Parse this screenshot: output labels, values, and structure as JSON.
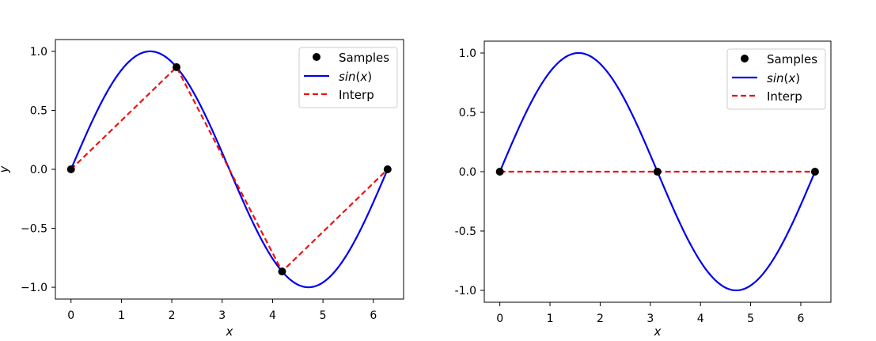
{
  "colors": {
    "samples": "#000000",
    "sin": "#0000ee",
    "interp": "#ee1111",
    "legend_border": "#cccccc"
  },
  "chart_data": [
    {
      "type": "line",
      "title": "",
      "xlabel": "x",
      "ylabel": "y",
      "xlim": [
        -0.31,
        6.6
      ],
      "ylim": [
        -1.1,
        1.1
      ],
      "xticks": [
        0,
        1,
        2,
        3,
        4,
        5,
        6
      ],
      "xtick_labels": [
        "0",
        "1",
        "2",
        "3",
        "4",
        "5",
        "6"
      ],
      "yticks": [
        1.0,
        0.5,
        0.0,
        -0.5,
        -1.0
      ],
      "ytick_labels": [
        "1.0",
        "0.5",
        "0.0",
        "−0.5",
        "−1.0"
      ],
      "legend": {
        "placement": "top-right",
        "entries": [
          "Samples",
          "sin(x)",
          "Interp"
        ]
      },
      "series": [
        {
          "name": "Samples",
          "kind": "scatter",
          "color": "#000000",
          "x": [
            0,
            2.094,
            4.189,
            6.283
          ],
          "y": [
            0.0,
            0.866,
            -0.866,
            0.0
          ]
        },
        {
          "name": "sin(x)",
          "kind": "function",
          "color": "#0000ee",
          "x_range": [
            0,
            6.283
          ]
        },
        {
          "name": "Interp",
          "kind": "line",
          "style": "dashed",
          "color": "#ee1111",
          "x": [
            0,
            2.094,
            4.189,
            6.283
          ],
          "y": [
            0.0,
            0.866,
            -0.866,
            0.0
          ]
        }
      ]
    },
    {
      "type": "line",
      "title": "",
      "xlabel": "x",
      "ylabel": "",
      "xlim": [
        -0.31,
        6.6
      ],
      "ylim": [
        -1.1,
        1.1
      ],
      "xticks": [
        0,
        1,
        2,
        3,
        4,
        5,
        6
      ],
      "xtick_labels": [
        "0",
        "1",
        "2",
        "3",
        "4",
        "5",
        "6"
      ],
      "yticks": [
        1.0,
        0.5,
        0.0,
        -0.5,
        -1.0
      ],
      "ytick_labels": [
        "1.0",
        "0.5",
        "0.0",
        "-0.5",
        "-1.0"
      ],
      "legend": {
        "placement": "top-right",
        "entries": [
          "Samples",
          "sin(x)",
          "Interp"
        ]
      },
      "series": [
        {
          "name": "Samples",
          "kind": "scatter",
          "color": "#000000",
          "x": [
            0,
            3.1416,
            6.283
          ],
          "y": [
            0.0,
            0.0,
            0.0
          ]
        },
        {
          "name": "sin(x)",
          "kind": "function",
          "color": "#0000ee",
          "x_range": [
            0,
            6.283
          ]
        },
        {
          "name": "Interp",
          "kind": "line",
          "style": "dashed",
          "color": "#ee1111",
          "x": [
            0,
            3.1416,
            6.283
          ],
          "y": [
            0.0,
            0.0,
            0.0
          ]
        }
      ]
    }
  ]
}
